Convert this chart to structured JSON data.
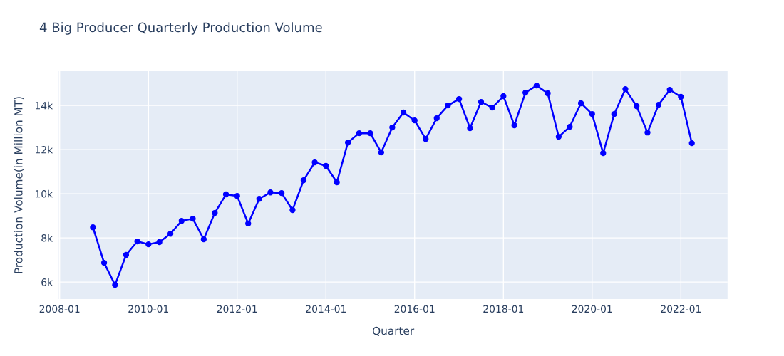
{
  "chart_data": {
    "type": "line",
    "title": "4 Big Producer Quarterly Production Volume",
    "xlabel": "Quarter",
    "ylabel": "Production Volume(in Million MT)",
    "x": [
      "2008-10",
      "2009-01",
      "2009-04",
      "2009-07",
      "2009-10",
      "2010-01",
      "2010-04",
      "2010-07",
      "2010-10",
      "2011-01",
      "2011-04",
      "2011-07",
      "2011-10",
      "2012-01",
      "2012-04",
      "2012-07",
      "2012-10",
      "2013-01",
      "2013-04",
      "2013-07",
      "2013-10",
      "2014-01",
      "2014-04",
      "2014-07",
      "2014-10",
      "2015-01",
      "2015-04",
      "2015-07",
      "2015-10",
      "2016-01",
      "2016-04",
      "2016-07",
      "2016-10",
      "2017-01",
      "2017-04",
      "2017-07",
      "2017-10",
      "2018-01",
      "2018-04",
      "2018-07",
      "2018-10",
      "2019-01",
      "2019-04",
      "2019-07",
      "2019-10",
      "2020-01",
      "2020-04",
      "2020-07",
      "2020-10",
      "2021-01",
      "2021-04",
      "2021-07",
      "2021-10",
      "2022-01",
      "2022-04"
    ],
    "series": [
      {
        "color": "#0000ff",
        "values": [
          8480,
          6870,
          5870,
          7230,
          7840,
          7710,
          7810,
          8190,
          8770,
          8870,
          7940,
          9130,
          9970,
          9900,
          8650,
          9770,
          10060,
          10030,
          9260,
          10610,
          11420,
          11260,
          10520,
          12320,
          12740,
          12740,
          11870,
          13000,
          13680,
          13320,
          12480,
          13420,
          14000,
          14290,
          12970,
          14160,
          13900,
          14420,
          13100,
          14580,
          14900,
          14550,
          12580,
          13030,
          14100,
          13610,
          11840,
          13610,
          14740,
          13970,
          12770,
          14030,
          14710,
          14390,
          12290
        ]
      }
    ],
    "xlim": [
      "2007-12-25",
      "2023-01-20"
    ],
    "xticks": [
      {
        "value": "2008-01",
        "label": "2008-01"
      },
      {
        "value": "2010-01",
        "label": "2010-01"
      },
      {
        "value": "2012-01",
        "label": "2012-01"
      },
      {
        "value": "2014-01",
        "label": "2014-01"
      },
      {
        "value": "2016-01",
        "label": "2016-01"
      },
      {
        "value": "2018-01",
        "label": "2018-01"
      },
      {
        "value": "2020-01",
        "label": "2020-01"
      },
      {
        "value": "2022-01",
        "label": "2022-01"
      }
    ],
    "ylim": [
      5230,
      15550
    ],
    "yticks": [
      {
        "value": 6000,
        "label": "6k"
      },
      {
        "value": 8000,
        "label": "8k"
      },
      {
        "value": 10000,
        "label": "10k"
      },
      {
        "value": 12000,
        "label": "12k"
      },
      {
        "value": 14000,
        "label": "14k"
      }
    ],
    "grid": true,
    "legend": false,
    "marker": "circle",
    "line_style": "solid"
  }
}
